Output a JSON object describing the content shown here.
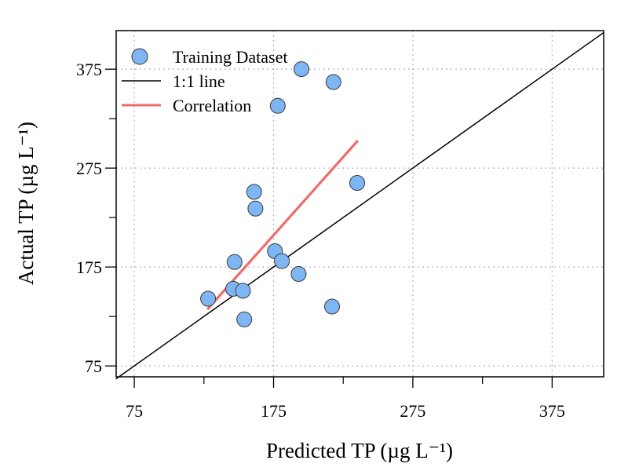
{
  "chart_data": {
    "type": "scatter",
    "xlabel": "Predicted TP (µg L⁻¹)",
    "ylabel": "Actual TP (µg L⁻¹)",
    "xlim": [
      62,
      412
    ],
    "ylim": [
      64,
      414
    ],
    "x_ticks": [
      75,
      175,
      275,
      375
    ],
    "y_ticks": [
      75,
      175,
      275,
      375
    ],
    "x_tick_labels": [
      "75",
      "175",
      "275",
      "375"
    ],
    "y_tick_labels": [
      "75",
      "175",
      "275",
      "375"
    ],
    "grid": true,
    "legend_position": "top-left",
    "series": [
      {
        "name": "Training Dataset",
        "type": "scatter",
        "color": "#7EB6F4",
        "points": [
          {
            "x": 128,
            "y": 143
          },
          {
            "x": 146,
            "y": 153
          },
          {
            "x": 147,
            "y": 180
          },
          {
            "x": 153,
            "y": 151
          },
          {
            "x": 154,
            "y": 122
          },
          {
            "x": 161,
            "y": 251
          },
          {
            "x": 162,
            "y": 234
          },
          {
            "x": 176,
            "y": 191
          },
          {
            "x": 178,
            "y": 338
          },
          {
            "x": 181,
            "y": 181
          },
          {
            "x": 193,
            "y": 168
          },
          {
            "x": 195,
            "y": 375
          },
          {
            "x": 217,
            "y": 135
          },
          {
            "x": 218,
            "y": 362
          },
          {
            "x": 235,
            "y": 260
          }
        ]
      },
      {
        "name": "1:1 line",
        "type": "line",
        "color": "#000000",
        "x": [
          62,
          412
        ],
        "y": [
          62,
          412
        ]
      },
      {
        "name": "Correlation",
        "type": "line",
        "color": "#F06A6A",
        "x": [
          128,
          235
        ],
        "y": [
          133,
          302
        ]
      }
    ]
  }
}
